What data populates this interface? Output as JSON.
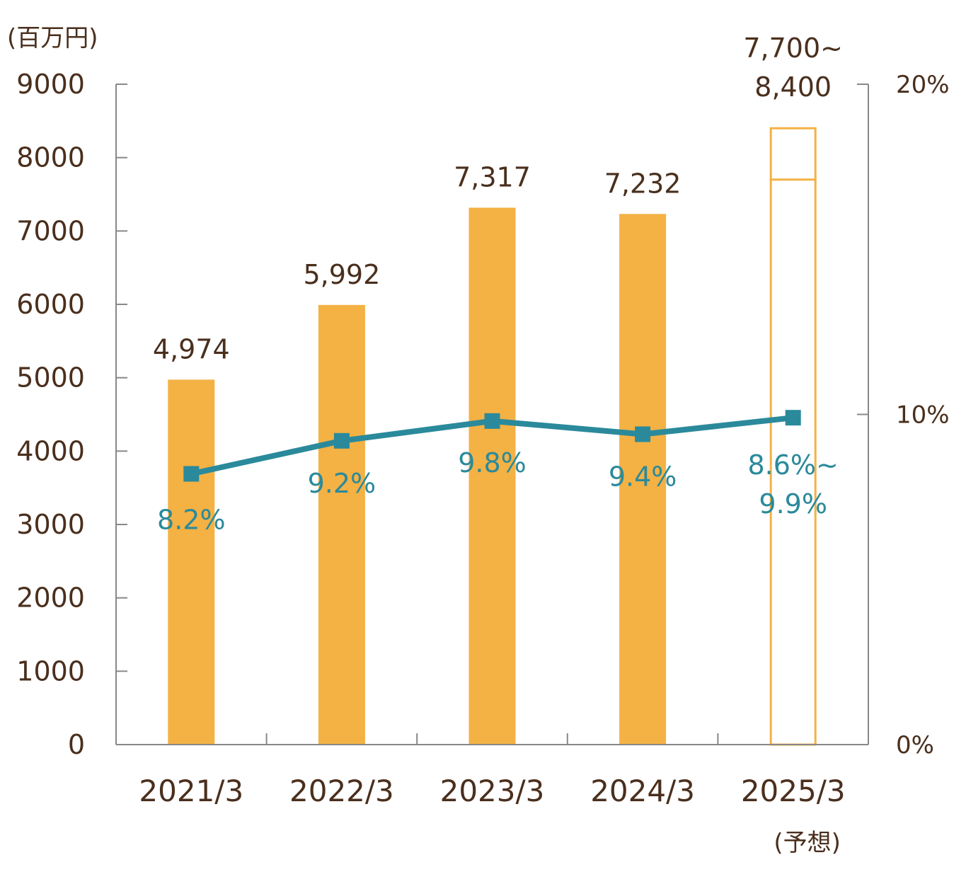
{
  "chart_data": {
    "type": "bar",
    "unit_label": "(百万円)",
    "categories": [
      "2021/3",
      "2022/3",
      "2023/3",
      "2024/3",
      "2025/3"
    ],
    "forecast_note": "(予想)",
    "series": [
      {
        "values": [
          4974,
          5992,
          7317,
          7232,
          null
        ],
        "labels": [
          "4,974",
          "5,992",
          "7,317",
          "7,232",
          ""
        ],
        "color": "#f4b144"
      },
      {
        "type": "line",
        "values": [
          8.2,
          9.2,
          9.8,
          9.4,
          9.9
        ],
        "labels": [
          "8.2%",
          "9.2%",
          "9.8%",
          "9.4%",
          "8.6%~\n9.9%"
        ],
        "color": "#2a8a9b"
      }
    ],
    "forecast_range": {
      "low": 7700,
      "high": 8400,
      "label_line1": "7,700~",
      "label_line2": "8,400",
      "color": "#f4b144"
    },
    "forecast_pct_range": {
      "low": 8.6,
      "high": 9.9,
      "label_line1": "8.6%~",
      "label_line2": "9.9%"
    },
    "y_left": {
      "min": 0,
      "max": 9000,
      "ticks": [
        "0",
        "1000",
        "2000",
        "3000",
        "4000",
        "5000",
        "6000",
        "7000",
        "8000",
        "9000"
      ]
    },
    "y_right": {
      "min": 0,
      "max": 20,
      "ticks": [
        "0%",
        "10%",
        "20%"
      ]
    },
    "grid": false,
    "axis_color": "#888888"
  }
}
